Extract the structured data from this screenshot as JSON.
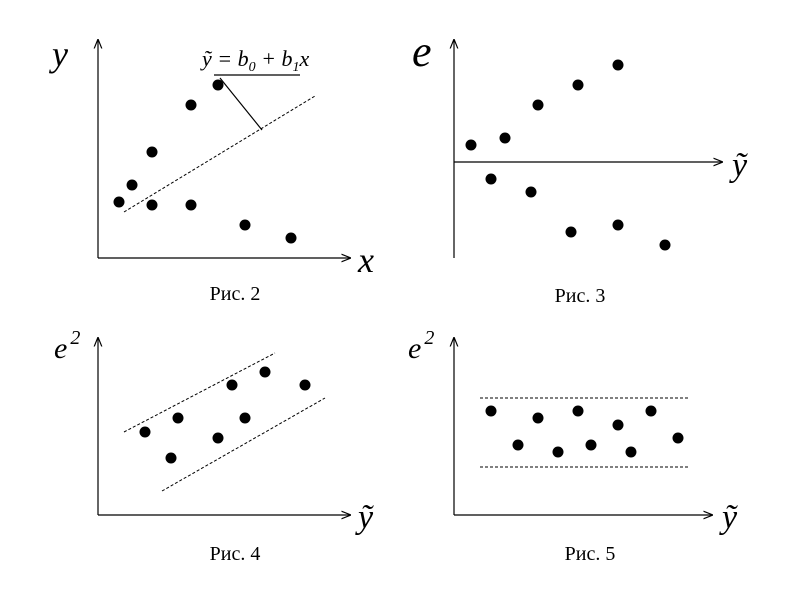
{
  "panels": [
    {
      "caption": "Рис. 2",
      "y_label": "y",
      "x_label": "x",
      "formula": {
        "parts": [
          "ỹ = b",
          "0",
          " + b",
          "1",
          "x"
        ]
      }
    },
    {
      "caption": "Рис. 3",
      "y_label": "e",
      "x_label": "ỹ"
    },
    {
      "caption": "Рис. 4",
      "y_label": "e",
      "y_label_sup": "2",
      "x_label": "ỹ"
    },
    {
      "caption": "Рис. 5",
      "y_label": "e",
      "y_label_sup": "2",
      "x_label": "ỹ"
    }
  ]
}
